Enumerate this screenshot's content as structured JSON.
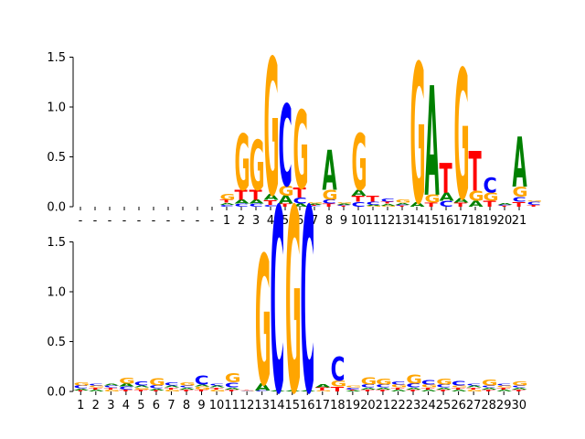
{
  "colors": {
    "A": "#008000",
    "C": "#0000ff",
    "G": "#ffa500",
    "T": "#ff0000"
  },
  "chart_data": [
    {
      "type": "sequence-logo",
      "ylim": [
        0,
        1.8
      ],
      "yticks": [
        "0.0",
        "0.5",
        "1.0",
        "1.5"
      ],
      "ytick_values": [
        0,
        0.5,
        1.0,
        1.5
      ],
      "xtick_labels": [
        "-",
        "-",
        "-",
        "-",
        "-",
        "-",
        "-",
        "-",
        "-",
        "-",
        "1",
        "2",
        "3",
        "4",
        "5",
        "6",
        "7",
        "8",
        "9",
        "10",
        "11",
        "12",
        "13",
        "14",
        "15",
        "16",
        "17",
        "18",
        "19",
        "20",
        "21"
      ],
      "columns": [
        [],
        [],
        [],
        [],
        [],
        [],
        [],
        [],
        [],
        [],
        [
          [
            "C",
            0.02
          ],
          [
            "A",
            0.02
          ],
          [
            "T",
            0.03
          ],
          [
            "G",
            0.06
          ]
        ],
        [
          [
            "C",
            0.03
          ],
          [
            "A",
            0.04
          ],
          [
            "T",
            0.1
          ],
          [
            "G",
            0.56
          ]
        ],
        [
          [
            "C",
            0.03
          ],
          [
            "A",
            0.04
          ],
          [
            "T",
            0.1
          ],
          [
            "G",
            0.5
          ]
        ],
        [
          [
            "C",
            0.02
          ],
          [
            "T",
            0.05
          ],
          [
            "A",
            0.06
          ],
          [
            "G",
            1.37
          ]
        ],
        [
          [
            "T",
            0.03
          ],
          [
            "A",
            0.08
          ],
          [
            "G",
            0.1
          ],
          [
            "C",
            0.82
          ]
        ],
        [
          [
            "A",
            0.03
          ],
          [
            "C",
            0.06
          ],
          [
            "T",
            0.1
          ],
          [
            "G",
            0.78
          ]
        ],
        [
          [
            "C",
            0.01
          ],
          [
            "T",
            0.01
          ],
          [
            "A",
            0.01
          ],
          [
            "G",
            0.01
          ]
        ],
        [
          [
            "T",
            0.03
          ],
          [
            "C",
            0.04
          ],
          [
            "G",
            0.1
          ],
          [
            "A",
            0.4
          ]
        ],
        [
          [
            "T",
            0.01
          ],
          [
            "C",
            0.01
          ],
          [
            "A",
            0.01
          ],
          [
            "G",
            0.01
          ]
        ],
        [
          [
            "C",
            0.05
          ],
          [
            "T",
            0.06
          ],
          [
            "A",
            0.06
          ],
          [
            "G",
            0.57
          ]
        ],
        [
          [
            "G",
            0.01
          ],
          [
            "A",
            0.01
          ],
          [
            "C",
            0.03
          ],
          [
            "T",
            0.06
          ]
        ],
        [
          [
            "G",
            0.01
          ],
          [
            "A",
            0.02
          ],
          [
            "T",
            0.02
          ],
          [
            "C",
            0.03
          ]
        ],
        [
          [
            "T",
            0.01
          ],
          [
            "C",
            0.01
          ],
          [
            "A",
            0.02
          ],
          [
            "G",
            0.03
          ]
        ],
        [
          [
            "A",
            0.05
          ],
          [
            "G",
            1.4
          ]
        ],
        [
          [
            "T",
            0.04
          ],
          [
            "G",
            0.08
          ],
          [
            "A",
            1.1
          ]
        ],
        [
          [
            "C",
            0.06
          ],
          [
            "A",
            0.08
          ],
          [
            "T",
            0.3
          ]
        ],
        [
          [
            "T",
            0.04
          ],
          [
            "A",
            0.05
          ],
          [
            "G",
            1.3
          ]
        ],
        [
          [
            "A",
            0.06
          ],
          [
            "G",
            0.1
          ],
          [
            "T",
            0.4
          ]
        ],
        [
          [
            "T",
            0.06
          ],
          [
            "G",
            0.08
          ],
          [
            "C",
            0.15
          ]
        ],
        [
          [
            "T",
            0.01
          ],
          [
            "C",
            0.01
          ],
          [
            "A",
            0.02
          ]
        ],
        [
          [
            "T",
            0.05
          ],
          [
            "C",
            0.05
          ],
          [
            "G",
            0.1
          ],
          [
            "A",
            0.5
          ]
        ],
        [
          [
            "T",
            0.02
          ],
          [
            "C",
            0.03
          ],
          [
            "G",
            0.01
          ]
        ]
      ]
    },
    {
      "type": "sequence-logo",
      "ylim": [
        0,
        1.8
      ],
      "yticks": [
        "0.0",
        "0.5",
        "1.0",
        "1.5"
      ],
      "ytick_values": [
        0,
        0.5,
        1.0,
        1.5
      ],
      "xtick_labels": [
        "1",
        "2",
        "3",
        "4",
        "5",
        "6",
        "7",
        "8",
        "9",
        "10",
        "11",
        "12",
        "13",
        "14",
        "15",
        "16",
        "17",
        "18",
        "19",
        "20",
        "21",
        "22",
        "23",
        "24",
        "25",
        "26",
        "27",
        "28",
        "29",
        "30"
      ],
      "columns": [
        [
          [
            "T",
            0.01
          ],
          [
            "A",
            0.02
          ],
          [
            "C",
            0.03
          ],
          [
            "G",
            0.03
          ]
        ],
        [
          [
            "A",
            0.02
          ],
          [
            "T",
            0.02
          ],
          [
            "G",
            0.02
          ],
          [
            "C",
            0.02
          ]
        ],
        [
          [
            "G",
            0.02
          ],
          [
            "T",
            0.02
          ],
          [
            "C",
            0.02
          ],
          [
            "A",
            0.02
          ]
        ],
        [
          [
            "T",
            0.02
          ],
          [
            "C",
            0.03
          ],
          [
            "A",
            0.03
          ],
          [
            "G",
            0.06
          ]
        ],
        [
          [
            "T",
            0.02
          ],
          [
            "G",
            0.02
          ],
          [
            "A",
            0.02
          ],
          [
            "C",
            0.04
          ]
        ],
        [
          [
            "T",
            0.01
          ],
          [
            "A",
            0.02
          ],
          [
            "C",
            0.03
          ],
          [
            "G",
            0.07
          ]
        ],
        [
          [
            "G",
            0.02
          ],
          [
            "T",
            0.02
          ],
          [
            "A",
            0.02
          ],
          [
            "C",
            0.03
          ]
        ],
        [
          [
            "T",
            0.02
          ],
          [
            "A",
            0.02
          ],
          [
            "C",
            0.02
          ],
          [
            "G",
            0.03
          ]
        ],
        [
          [
            "T",
            0.02
          ],
          [
            "G",
            0.03
          ],
          [
            "A",
            0.02
          ],
          [
            "C",
            0.09
          ]
        ],
        [
          [
            "G",
            0.02
          ],
          [
            "T",
            0.02
          ],
          [
            "A",
            0.02
          ],
          [
            "C",
            0.02
          ]
        ],
        [
          [
            "T",
            0.02
          ],
          [
            "A",
            0.02
          ],
          [
            "C",
            0.05
          ],
          [
            "G",
            0.09
          ]
        ],
        [
          [
            "G",
            0.005
          ],
          [
            "C",
            0.005
          ],
          [
            "T",
            0.005
          ]
        ],
        [
          [
            "C",
            0.01
          ],
          [
            "A",
            0.07
          ],
          [
            "G",
            1.3
          ]
        ],
        [
          [
            "A",
            0.01
          ],
          [
            "C",
            1.85
          ]
        ],
        [
          [
            "A",
            0.01
          ],
          [
            "G",
            1.85
          ]
        ],
        [
          [
            "A",
            0.01
          ],
          [
            "C",
            1.85
          ]
        ],
        [
          [
            "G",
            0.01
          ],
          [
            "T",
            0.03
          ],
          [
            "A",
            0.03
          ]
        ],
        [
          [
            "T",
            0.05
          ],
          [
            "G",
            0.06
          ],
          [
            "C",
            0.24
          ]
        ],
        [
          [
            "A",
            0.01
          ],
          [
            "T",
            0.01
          ],
          [
            "C",
            0.02
          ],
          [
            "G",
            0.02
          ]
        ],
        [
          [
            "T",
            0.02
          ],
          [
            "A",
            0.02
          ],
          [
            "C",
            0.03
          ],
          [
            "G",
            0.07
          ]
        ],
        [
          [
            "T",
            0.02
          ],
          [
            "A",
            0.02
          ],
          [
            "C",
            0.03
          ],
          [
            "G",
            0.06
          ]
        ],
        [
          [
            "A",
            0.02
          ],
          [
            "T",
            0.02
          ],
          [
            "G",
            0.03
          ],
          [
            "C",
            0.03
          ]
        ],
        [
          [
            "T",
            0.02
          ],
          [
            "A",
            0.02
          ],
          [
            "C",
            0.04
          ],
          [
            "G",
            0.09
          ]
        ],
        [
          [
            "A",
            0.02
          ],
          [
            "T",
            0.02
          ],
          [
            "G",
            0.03
          ],
          [
            "C",
            0.05
          ]
        ],
        [
          [
            "T",
            0.02
          ],
          [
            "A",
            0.02
          ],
          [
            "C",
            0.03
          ],
          [
            "G",
            0.06
          ]
        ],
        [
          [
            "A",
            0.02
          ],
          [
            "T",
            0.02
          ],
          [
            "G",
            0.02
          ],
          [
            "C",
            0.05
          ]
        ],
        [
          [
            "G",
            0.02
          ],
          [
            "T",
            0.02
          ],
          [
            "A",
            0.02
          ],
          [
            "C",
            0.02
          ]
        ],
        [
          [
            "T",
            0.02
          ],
          [
            "A",
            0.02
          ],
          [
            "C",
            0.02
          ],
          [
            "G",
            0.06
          ]
        ],
        [
          [
            "A",
            0.02
          ],
          [
            "T",
            0.02
          ],
          [
            "G",
            0.02
          ],
          [
            "C",
            0.02
          ]
        ],
        [
          [
            "T",
            0.02
          ],
          [
            "A",
            0.02
          ],
          [
            "C",
            0.02
          ],
          [
            "G",
            0.04
          ]
        ]
      ]
    }
  ]
}
